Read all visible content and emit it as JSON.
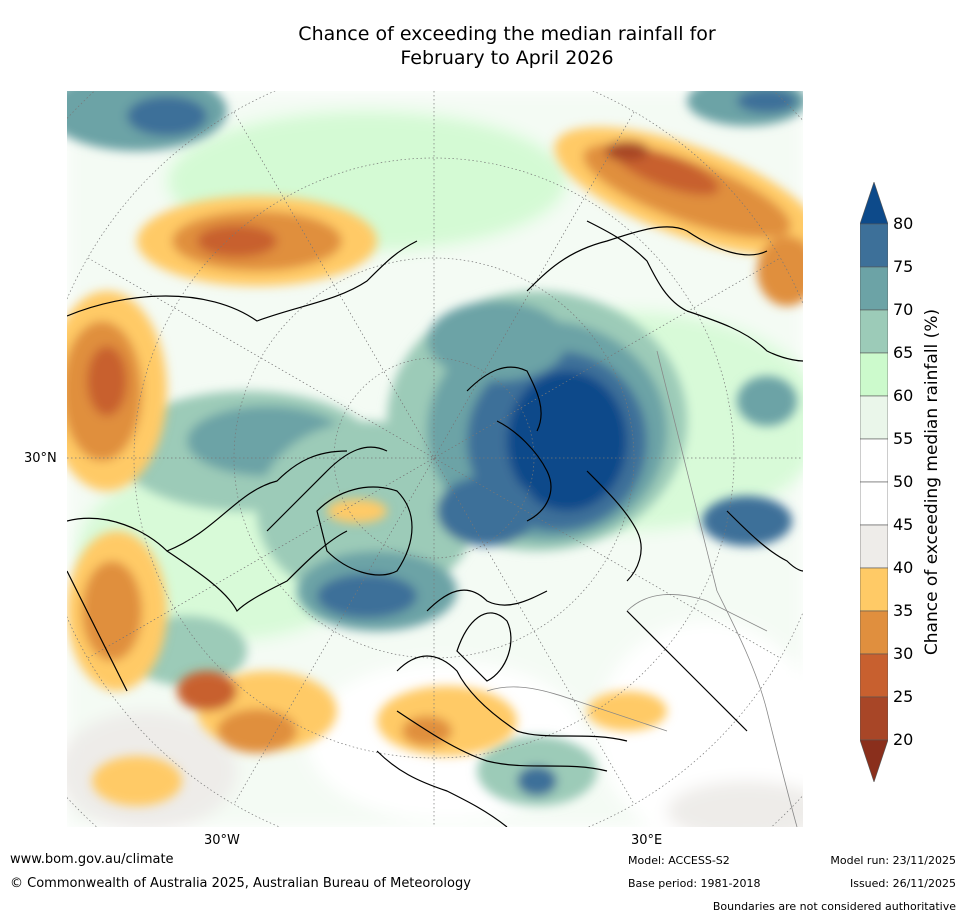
{
  "title": {
    "line1": "Chance of exceeding the median rainfall for",
    "line2": "February to April 2026"
  },
  "map": {
    "lat_label": "30°N",
    "lon_labels": [
      "30°W",
      "30°E"
    ],
    "anomaly_regions": [
      {
        "name": "northern-europe-russia-wet",
        "value": 80
      },
      {
        "name": "canadian-arctic-wet",
        "value": 70
      },
      {
        "name": "north-atlantic-wet",
        "value": 75
      },
      {
        "name": "central-asia-wet",
        "value": 75
      },
      {
        "name": "north-pacific-dry",
        "value": 30
      },
      {
        "name": "siberia-east-dry",
        "value": 25
      },
      {
        "name": "western-us-dry",
        "value": 30
      },
      {
        "name": "mediterranean-dry",
        "value": 35
      },
      {
        "name": "tropical-atlantic-dry",
        "value": 35
      }
    ]
  },
  "colorbar": {
    "title": "Chance of exceeding median rainfall (%)",
    "ticks": [
      "80",
      "75",
      "70",
      "65",
      "60",
      "55",
      "50",
      "45",
      "40",
      "35",
      "30",
      "25",
      "20"
    ],
    "colors": {
      "over": "#0d4a8a",
      "c75_80": "#3d7099",
      "c70_75": "#6ca3a6",
      "c65_70": "#9ccbb8",
      "c60_65": "#ccfacc",
      "c55_60": "#eaf6ea",
      "c50_55": "#ffffff",
      "c45_50": "#ffffff",
      "c40_45": "#eeece9",
      "c35_40": "#ffca66",
      "c30_35": "#e08f3e",
      "c25_30": "#c8602f",
      "c20_25": "#a84627",
      "under": "#8a2f1c"
    }
  },
  "footer": {
    "url": "www.bom.gov.au/climate",
    "copyright": "© Commonwealth of Australia 2025, Australian Bureau of Meteorology",
    "model": "Model: ACCESS-S2",
    "base_period": "Base period: 1981-2018",
    "model_run": "Model run: 23/11/2025",
    "issued": "Issued: 26/11/2025",
    "disclaimer": "Boundaries are not considered authoritative"
  }
}
